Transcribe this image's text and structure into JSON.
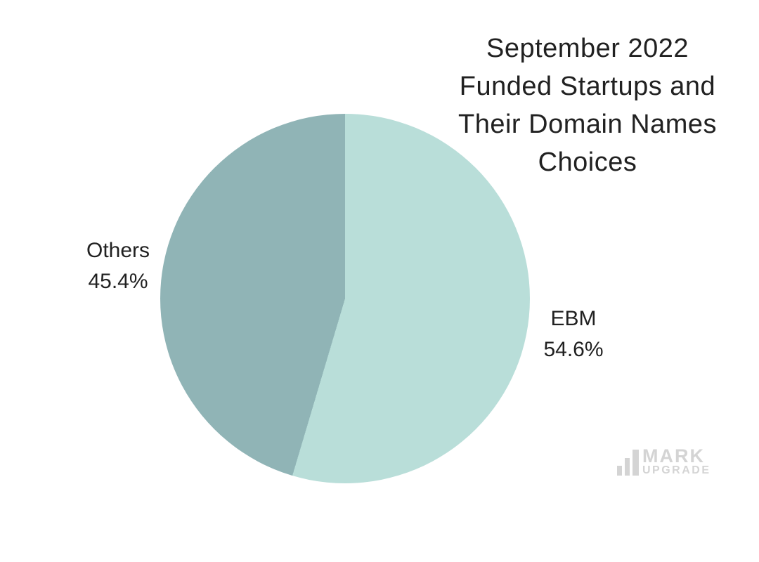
{
  "theme": {
    "background": "#ffffff",
    "text": "#212121",
    "watermark": "#d4d4d4"
  },
  "chart_data": {
    "type": "pie",
    "title": "September 2022 Funded Startups and Their Domain Names Choices",
    "title_lines": [
      "September 2022",
      "Funded Startups and",
      "Their Domain Names",
      "Choices"
    ],
    "start_angle_deg": 0,
    "direction": "clockwise",
    "legend_position": "none",
    "labels_outside": true,
    "slices": [
      {
        "label": "EBM",
        "value": 54.6,
        "percent_label": "54.6%",
        "color": "#b9ded9"
      },
      {
        "label": "Others",
        "value": 45.4,
        "percent_label": "45.4%",
        "color": "#90b4b6"
      }
    ]
  },
  "watermark": {
    "line1": "MARK",
    "line2": "UPGRADE",
    "icon": "bar-chart-icon"
  }
}
